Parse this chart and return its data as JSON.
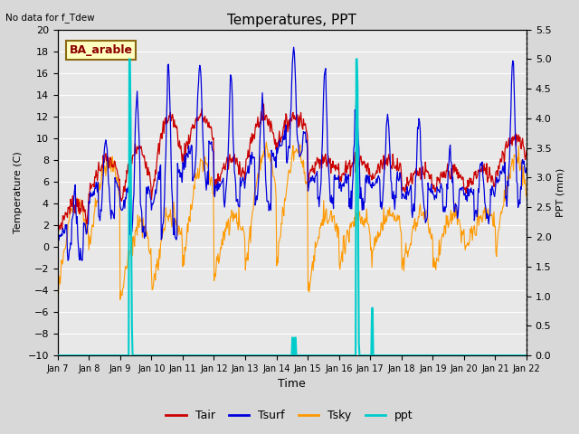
{
  "title": "Temperatures, PPT",
  "subtitle": "No data for f_Tdew",
  "location_label": "BA_arable",
  "xlabel": "Time",
  "ylabel_left": "Temperature (C)",
  "ylabel_right": "PPT (mm)",
  "ylim_left": [
    -10,
    20
  ],
  "ylim_right": [
    0.0,
    5.5
  ],
  "yticks_left": [
    -10,
    -8,
    -6,
    -4,
    -2,
    0,
    2,
    4,
    6,
    8,
    10,
    12,
    14,
    16,
    18,
    20
  ],
  "yticks_right": [
    0.0,
    0.5,
    1.0,
    1.5,
    2.0,
    2.5,
    3.0,
    3.5,
    4.0,
    4.5,
    5.0,
    5.5
  ],
  "xtick_labels": [
    "Jan 7",
    "Jan 8",
    "Jan 9",
    "Jan 10",
    "Jan 11",
    "Jan 12",
    "Jan 13",
    "Jan 14",
    "Jan 15",
    "Jan 16",
    "Jan 17",
    "Jan 18",
    "Jan 19",
    "Jan 20",
    "Jan 21",
    "Jan 22"
  ],
  "color_tair": "#cc0000",
  "color_tsurf": "#0000dd",
  "color_tsky": "#ff9900",
  "color_ppt": "#00cccc",
  "bg_color": "#e8e8e8",
  "grid_color": "#ffffff",
  "n_days": 15,
  "pts_per_day": 48
}
